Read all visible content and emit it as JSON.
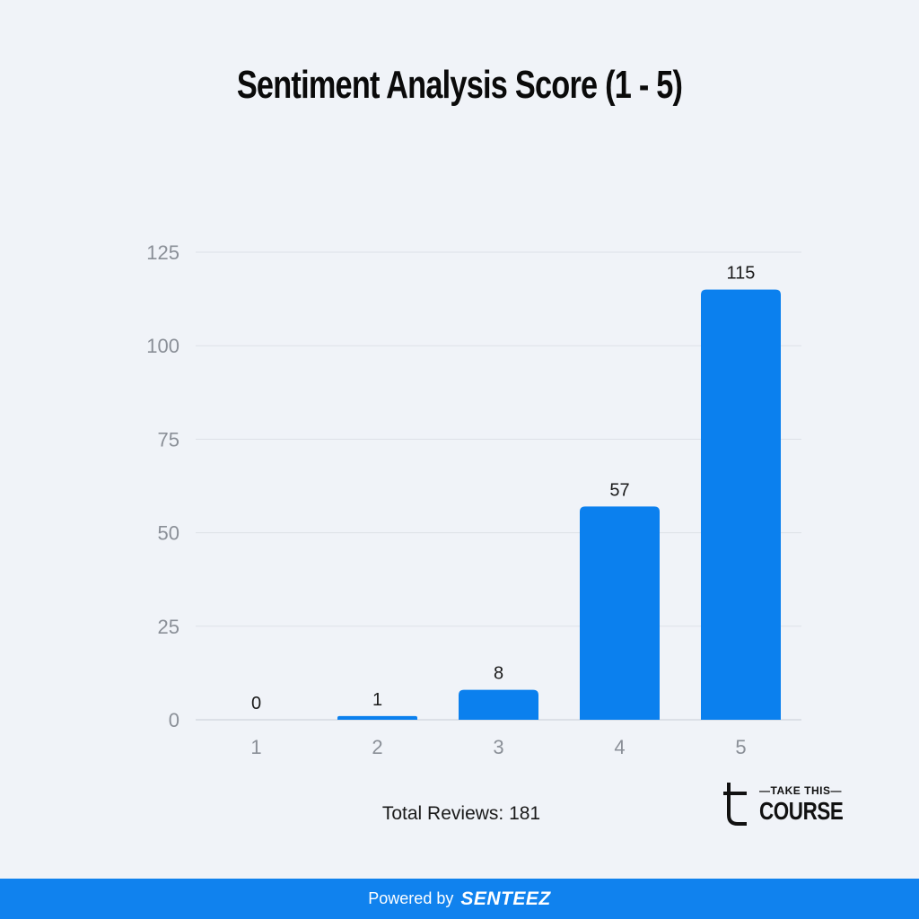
{
  "chart_data": {
    "type": "bar",
    "title": "Sentiment Analysis Score (1 - 5)",
    "categories": [
      "1",
      "2",
      "3",
      "4",
      "5"
    ],
    "values": [
      0,
      1,
      8,
      57,
      115
    ],
    "data_labels": [
      "0",
      "1",
      "8",
      "57",
      "115"
    ],
    "ylim": [
      0,
      125
    ],
    "yticks": [
      "0",
      "25",
      "50",
      "75",
      "100",
      "125"
    ],
    "xlabel": "",
    "ylabel": "",
    "grid": true,
    "legend": "none",
    "bar_color": "#0b80ee"
  },
  "summary": {
    "total_reviews": "Total Reviews: 181"
  },
  "logo": {
    "top_text": "—TAKE THIS—",
    "bottom_text": "COURSE"
  },
  "footer": {
    "label": "Powered by",
    "brand": "SENTEEZ",
    "background": "#1082ee"
  }
}
